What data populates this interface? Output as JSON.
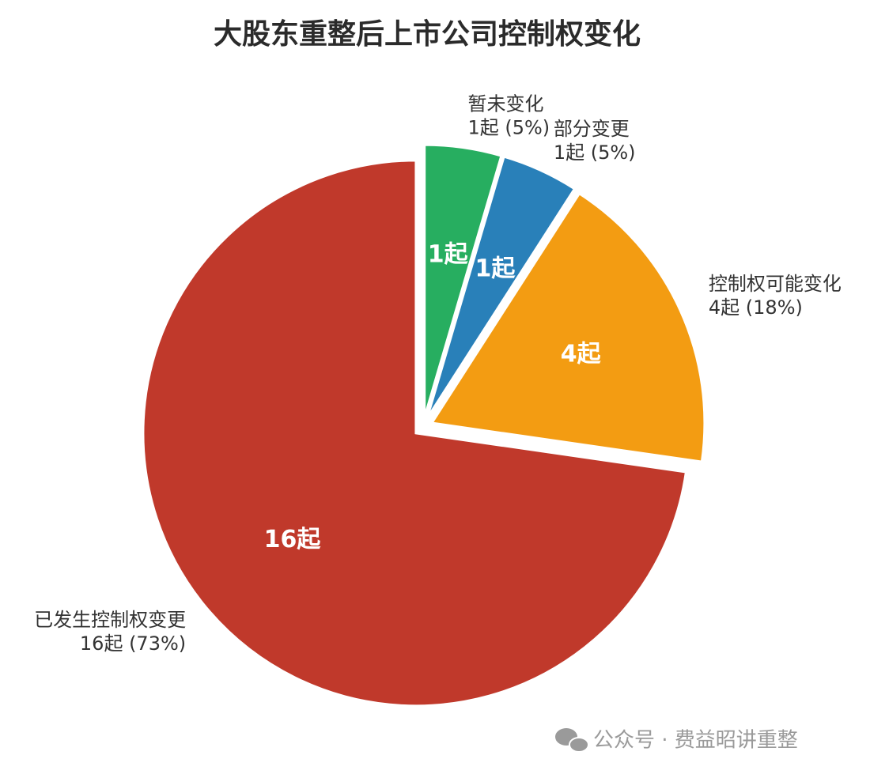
{
  "chart_data": {
    "type": "pie",
    "title": "大股东重整后上市公司控制权变化",
    "categories": [
      "暂未变化",
      "部分变更",
      "控制权可能变化",
      "已发生控制权变更"
    ],
    "values": [
      1,
      1,
      4,
      16
    ],
    "value_labels": [
      "1起",
      "1起",
      "4起",
      "16起"
    ],
    "outer_labels": [
      "1起 (5%)",
      "1起 (5%)",
      "4起 (18%)",
      "16起 (73%)"
    ],
    "colors": [
      "#27ae60",
      "#2980b9",
      "#f39c12",
      "#c0392b"
    ],
    "watermark": "公众号 · 费益昭讲重整"
  }
}
